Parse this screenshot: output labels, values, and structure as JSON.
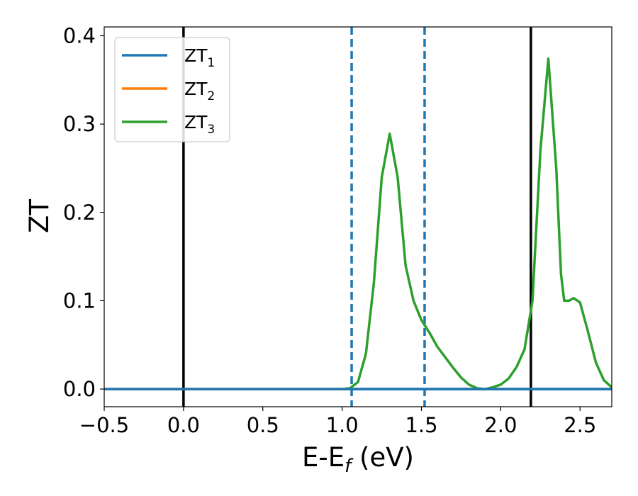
{
  "chart_data": {
    "type": "line",
    "xlabel_main": "E-E",
    "xlabel_sub": "f",
    "xlabel_unit": " (eV)",
    "ylabel": "ZT",
    "xlim": [
      -0.5,
      2.7
    ],
    "ylim": [
      -0.02,
      0.41
    ],
    "xticks": [
      -0.5,
      0.0,
      0.5,
      1.0,
      1.5,
      2.0,
      2.5
    ],
    "xtick_labels": [
      "−0.5",
      "0.0",
      "0.5",
      "1.0",
      "1.5",
      "2.0",
      "2.5"
    ],
    "yticks": [
      0.0,
      0.1,
      0.2,
      0.3,
      0.4
    ],
    "ytick_labels": [
      "0.0",
      "0.1",
      "0.2",
      "0.3",
      "0.4"
    ],
    "grid": false,
    "legend_placement": "top-left",
    "series": [
      {
        "name_main": "ZT",
        "name_sub": "1",
        "color": "#1f77b4",
        "x": [
          -0.5,
          2.7
        ],
        "y": [
          0.0,
          0.0
        ]
      },
      {
        "name_main": "ZT",
        "name_sub": "2",
        "color": "#ff7f0e",
        "x": [
          -0.5,
          2.7
        ],
        "y": [
          0.0,
          0.0
        ]
      },
      {
        "name_main": "ZT",
        "name_sub": "3",
        "color": "#2ca02c",
        "x": [
          -0.5,
          1.0,
          1.05,
          1.1,
          1.15,
          1.2,
          1.25,
          1.3,
          1.35,
          1.4,
          1.45,
          1.5,
          1.55,
          1.6,
          1.65,
          1.7,
          1.75,
          1.8,
          1.85,
          1.9,
          1.95,
          2.0,
          2.05,
          2.1,
          2.15,
          2.2,
          2.25,
          2.3,
          2.35,
          2.38,
          2.4,
          2.43,
          2.46,
          2.5,
          2.55,
          2.6,
          2.65,
          2.7
        ],
        "y": [
          0.0,
          0.0,
          0.001,
          0.008,
          0.04,
          0.12,
          0.24,
          0.289,
          0.24,
          0.14,
          0.1,
          0.078,
          0.064,
          0.048,
          0.036,
          0.024,
          0.013,
          0.005,
          0.001,
          0.0,
          0.002,
          0.005,
          0.012,
          0.025,
          0.045,
          0.1,
          0.27,
          0.374,
          0.25,
          0.13,
          0.1,
          0.1,
          0.103,
          0.098,
          0.065,
          0.03,
          0.01,
          0.002
        ]
      }
    ],
    "vlines": [
      {
        "x": 0.0,
        "color": "#000000",
        "style": "solid"
      },
      {
        "x": 1.06,
        "color": "#1f77b4",
        "style": "dashed"
      },
      {
        "x": 1.52,
        "color": "#1f77b4",
        "style": "dashed"
      },
      {
        "x": 2.19,
        "color": "#000000",
        "style": "solid"
      }
    ]
  }
}
